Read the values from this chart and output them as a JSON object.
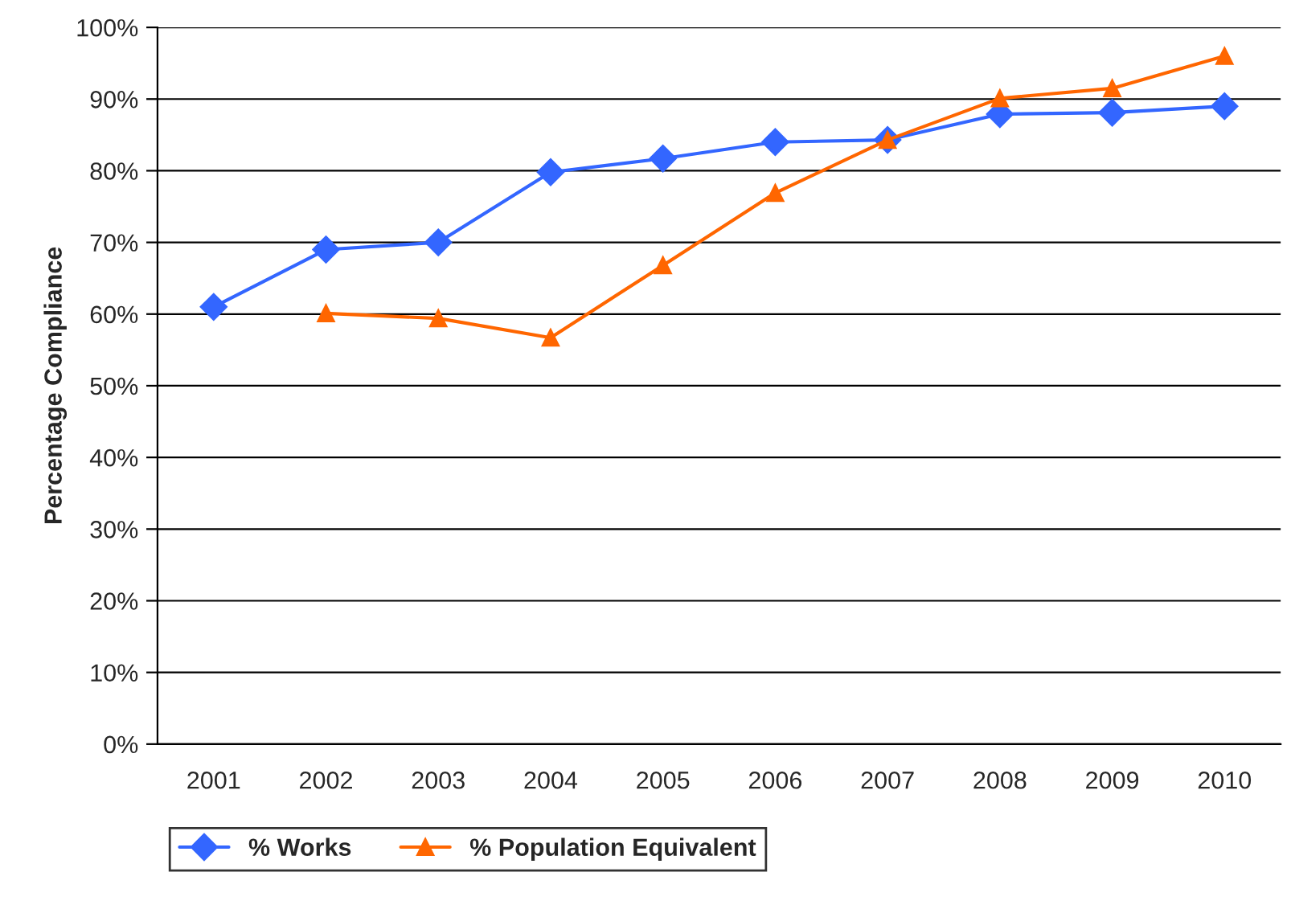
{
  "chart_data": {
    "type": "line",
    "ylabel": "Percentage Compliance",
    "categories": [
      "2001",
      "2002",
      "2003",
      "2004",
      "2005",
      "2006",
      "2007",
      "2008",
      "2009",
      "2010"
    ],
    "series": [
      {
        "name": "% Works",
        "color": "#3366ff",
        "marker": "diamond",
        "values": [
          61,
          69,
          70,
          79.8,
          81.7,
          84,
          84.3,
          87.9,
          88.1,
          89
        ]
      },
      {
        "name": "% Population Equivalent",
        "color": "#ff6600",
        "marker": "triangle",
        "values": [
          null,
          60.1,
          59.4,
          56.7,
          66.8,
          76.9,
          84.3,
          90.1,
          91.5,
          96
        ]
      }
    ],
    "ylim": [
      0,
      100
    ],
    "yticks": [
      {
        "value": 0,
        "label": "0%"
      },
      {
        "value": 10,
        "label": "10%"
      },
      {
        "value": 20,
        "label": "20%"
      },
      {
        "value": 30,
        "label": "30%"
      },
      {
        "value": 40,
        "label": "40%"
      },
      {
        "value": 50,
        "label": "50%"
      },
      {
        "value": 60,
        "label": "60%"
      },
      {
        "value": 70,
        "label": "70%"
      },
      {
        "value": 80,
        "label": "80%"
      },
      {
        "value": 90,
        "label": "90%"
      },
      {
        "value": 100,
        "label": "100%"
      }
    ],
    "grid": "y",
    "legend": "bottom",
    "line_style": "solid"
  }
}
